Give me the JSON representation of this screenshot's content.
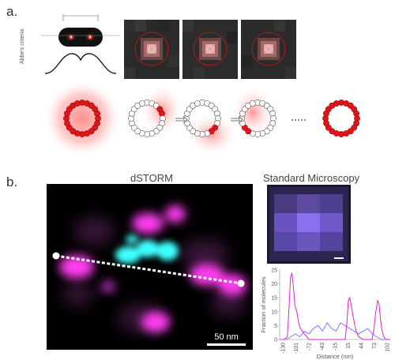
{
  "panel_a": {
    "label": "a.",
    "abbe_label": "Abbe's criteria"
  },
  "panel_b": {
    "label": "b.",
    "dstorm_title": "dSTORM",
    "standard_title": "Standard Microscopy",
    "scale_bar_label": "50 nm"
  },
  "chart_data": {
    "type": "line",
    "title": "",
    "xlabel": "Distance (nm)",
    "ylabel": "Fraction of molecules",
    "x_tick_labels": [
      "-130",
      "-101",
      "-72",
      "-43",
      "-15",
      "15",
      "44",
      "73",
      "102"
    ],
    "ylim": [
      0,
      25
    ],
    "y_ticks": [
      0,
      5,
      10,
      15,
      20,
      25
    ],
    "series": [
      {
        "color": "#e020d0",
        "x": [
          -135,
          -125,
          -118,
          -114,
          -111,
          -108,
          -105,
          -101,
          -97,
          -93,
          -89,
          -85,
          -80,
          -75,
          -70,
          -60,
          -50,
          -40,
          -30,
          -20,
          -10,
          0,
          10,
          14,
          17,
          20,
          24,
          28,
          34,
          40,
          50,
          60,
          70,
          74,
          78,
          82,
          85,
          88,
          92,
          96,
          100,
          104,
          110
        ],
        "values": [
          0,
          0,
          1,
          12,
          22,
          24,
          20,
          12,
          10,
          6,
          4,
          3,
          2,
          1,
          0,
          0,
          0,
          0,
          0,
          0,
          0,
          0,
          0,
          6,
          14,
          15,
          12,
          8,
          3,
          1,
          0,
          0,
          0,
          4,
          10,
          14,
          13,
          8,
          3,
          1,
          0,
          0,
          0
        ]
      },
      {
        "color": "#7a7af0",
        "x": [
          -135,
          -120,
          -110,
          -100,
          -90,
          -80,
          -70,
          -60,
          -50,
          -40,
          -30,
          -20,
          -10,
          0,
          10,
          20,
          30,
          40,
          50,
          60,
          70,
          80,
          90,
          100,
          110
        ],
        "values": [
          0,
          0,
          1,
          2,
          1,
          3,
          2,
          4,
          5,
          3,
          6,
          4,
          3,
          6,
          5,
          4,
          3,
          2,
          3,
          4,
          2,
          1,
          0,
          0,
          0
        ]
      }
    ]
  },
  "colors": {
    "magenta": "#ff3cf0",
    "cyan": "#40ffff",
    "ring_red": "#e0161c"
  }
}
